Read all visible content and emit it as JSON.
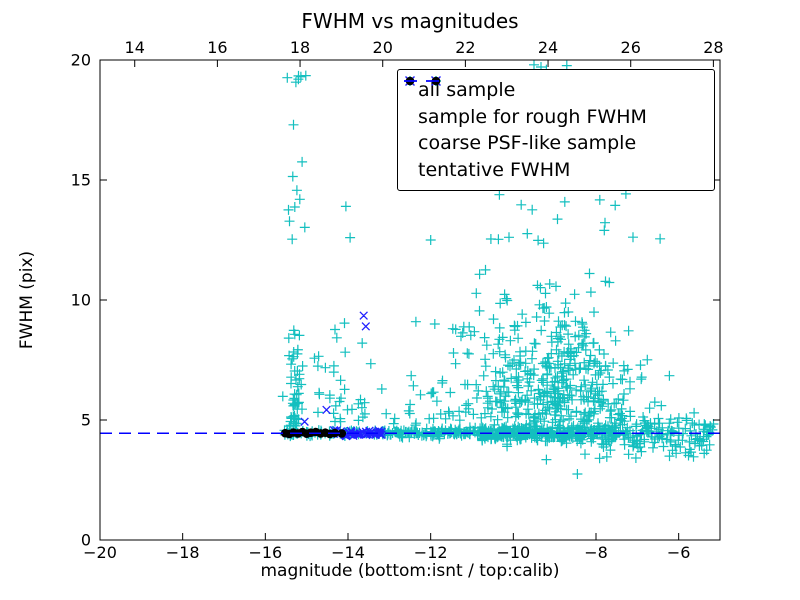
{
  "chart_data": {
    "type": "scatter",
    "title": "FWHM vs magnitudes",
    "xlabel": "magnitude (bottom:isnt / top:calib)",
    "ylabel": "FWHM (pix)",
    "xlim": [
      -20,
      -5
    ],
    "ylim": [
      0,
      20
    ],
    "x_ticks_bottom": [
      -20,
      -18,
      -16,
      -14,
      -12,
      -10,
      -8,
      -6
    ],
    "x_ticks_top": [
      14,
      16,
      18,
      20,
      22,
      24,
      26,
      28
    ],
    "top_axis_offset": 33.16,
    "y_ticks": [
      0,
      5,
      10,
      15,
      20
    ],
    "grid": false,
    "legend_position": "upper right",
    "tentative_fwhm_value": 4.45,
    "colors": {
      "all_sample": "#13bfbf",
      "rough_fwhm": "#2020ff",
      "coarse_psf": "#000000",
      "tentative_line": "#0000ff",
      "axis": "#000000"
    },
    "legend": [
      {
        "label": "all sample",
        "marker": "plus"
      },
      {
        "label": "sample for rough FWHM",
        "marker": "x"
      },
      {
        "label": "coarse PSF-like sample",
        "marker": "circle"
      },
      {
        "label": "tentative FWHM",
        "marker": "dashed-line"
      }
    ],
    "series": [
      {
        "name": "all sample",
        "marker": "+",
        "color": "#13bfbf",
        "seed": 1234,
        "clusters": [
          {
            "n": 55,
            "x": [
              "n",
              -15.3,
              0.09
            ],
            "y": [
              "h",
              4.7,
              1.9,
              12.5
            ]
          },
          {
            "n": 14,
            "x": [
              "n",
              -15.27,
              0.11
            ],
            "y": [
              "u",
              12.0,
              19.4
            ]
          },
          {
            "n": 34,
            "x": [
              "u",
              -14.85,
              -13.55
            ],
            "y": [
              "h",
              4.9,
              2.3,
              14.3
            ]
          },
          {
            "n": 26,
            "x": [
              "u",
              -13.5,
              -11.05
            ],
            "y": [
              "h",
              4.75,
              1.0,
              9.6
            ]
          },
          {
            "n": 90,
            "x": [
              "u",
              -15.55,
              -13.2
            ],
            "y": [
              "n",
              4.45,
              0.07
            ]
          },
          {
            "n": 130,
            "x": [
              "u",
              -13.2,
              -11.0
            ],
            "y": [
              "n",
              4.45,
              0.09
            ]
          },
          {
            "n": 380,
            "x": [
              "u",
              -11.0,
              -7.5
            ],
            "y": [
              "n",
              4.45,
              0.16
            ]
          },
          {
            "n": 110,
            "x": [
              "u",
              -7.5,
              -5.15
            ],
            "y": [
              "n",
              4.45,
              0.3
            ]
          },
          {
            "n": 320,
            "x": [
              "n",
              -8.6,
              0.85
            ],
            "y": [
              "h",
              4.85,
              2.3,
              15.8
            ]
          },
          {
            "n": 120,
            "x": [
              "n",
              -10.2,
              0.75
            ],
            "y": [
              "h",
              5.0,
              2.6,
              16.2
            ]
          },
          {
            "n": 28,
            "x": [
              "u",
              -10.6,
              -6.9
            ],
            "y": [
              "u",
              12.2,
              16.8
            ]
          },
          {
            "n": 6,
            "x": [
              "u",
              -9.8,
              -8.6
            ],
            "y": [
              "u",
              18.7,
              19.85
            ]
          },
          {
            "n": 34,
            "x": [
              "u",
              -8.8,
              -5.3
            ],
            "y": [
              "u",
              3.4,
              4.15
            ]
          }
        ],
        "pts": [
          [
            -8.45,
            2.75
          ],
          [
            -9.2,
            3.35
          ],
          [
            -10.15,
            3.9
          ],
          [
            -15.2,
            19.2
          ],
          [
            -15.02,
            19.35
          ],
          [
            -14.05,
            13.9
          ],
          [
            -13.95,
            12.6
          ],
          [
            -6.45,
            12.55
          ],
          [
            -11.9,
            9.0
          ],
          [
            -12.0,
            12.5
          ],
          [
            -9.5,
            19.8
          ],
          [
            -9.2,
            19.6
          ]
        ]
      },
      {
        "name": "sample for rough FWHM",
        "marker": "x",
        "color": "#2020ff",
        "seed": 99,
        "clusters": [
          {
            "n": 48,
            "x": [
              "u",
              -14.35,
              -13.18
            ],
            "y": [
              "n",
              4.45,
              0.07
            ]
          }
        ],
        "pts": [
          [
            -14.52,
            5.42
          ],
          [
            -13.62,
            9.35
          ],
          [
            -13.57,
            8.9
          ],
          [
            -15.05,
            4.93
          ]
        ]
      },
      {
        "name": "coarse PSF-like sample",
        "marker": "o",
        "color": "#000000",
        "pts": [
          [
            -15.52,
            4.45
          ],
          [
            -15.42,
            4.42
          ],
          [
            -15.32,
            4.48
          ],
          [
            -15.21,
            4.44
          ],
          [
            -15.1,
            4.5
          ],
          [
            -15.0,
            4.43
          ],
          [
            -14.9,
            4.47
          ],
          [
            -14.78,
            4.5
          ],
          [
            -14.66,
            4.44
          ],
          [
            -14.55,
            4.47
          ],
          [
            -14.44,
            4.42
          ],
          [
            -14.32,
            4.46
          ],
          [
            -14.15,
            4.44
          ]
        ]
      },
      {
        "name": "tentative FWHM",
        "marker": "hline",
        "color": "#0000ff",
        "y": 4.45,
        "dash": [
          12,
          7
        ]
      }
    ]
  }
}
